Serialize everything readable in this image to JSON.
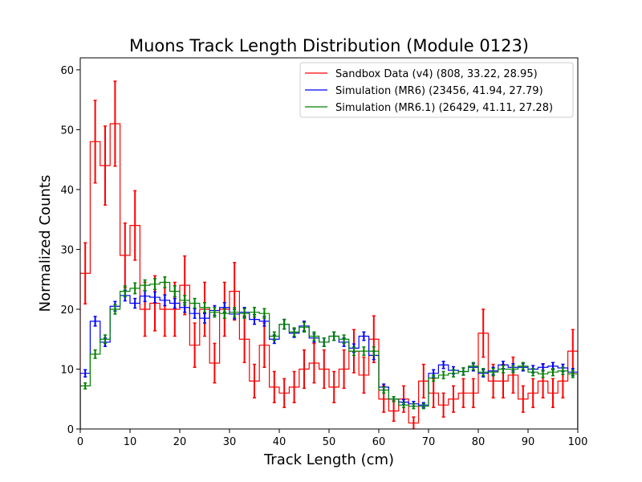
{
  "chart_data": {
    "type": "line",
    "drawstyle": "step-histogram-with-errorbars",
    "title": "Muons Track Length Distribution (Module 0123)",
    "xlabel": "Track Length (cm)",
    "ylabel": "Normalized Counts",
    "xlim": [
      0,
      100
    ],
    "ylim": [
      0,
      62
    ],
    "xticks": [
      0,
      10,
      20,
      30,
      40,
      50,
      60,
      70,
      80,
      90,
      100
    ],
    "yticks": [
      0,
      10,
      20,
      30,
      40,
      50,
      60
    ],
    "grid": false,
    "legend_position": "top-right",
    "bin_edges": [
      0,
      2,
      4,
      6,
      8,
      10,
      12,
      14,
      16,
      18,
      20,
      22,
      24,
      26,
      28,
      30,
      32,
      34,
      36,
      38,
      40,
      42,
      44,
      46,
      48,
      50,
      52,
      54,
      56,
      58,
      60,
      62,
      64,
      66,
      68,
      70,
      72,
      74,
      76,
      78,
      80,
      82,
      84,
      86,
      88,
      90,
      92,
      94,
      96,
      98,
      100
    ],
    "series": [
      {
        "name": "Sandbox Data (v4) (808, 33.22, 28.95)",
        "color": "#ff0000",
        "values": [
          26,
          48,
          44,
          51,
          29,
          34,
          20,
          21,
          20,
          20,
          24,
          14,
          20,
          11,
          20,
          23,
          15,
          8,
          14,
          7,
          6,
          7,
          10,
          11,
          10,
          7,
          10,
          13,
          9,
          15,
          5,
          3,
          5,
          1,
          8,
          6,
          4,
          5,
          6,
          6,
          16,
          8,
          8,
          9,
          5,
          6,
          8,
          6,
          8,
          13
        ],
        "errors": [
          5.1,
          6.9,
          6.6,
          7.1,
          5.4,
          5.8,
          4.5,
          4.6,
          4.5,
          4.5,
          4.9,
          3.7,
          4.5,
          3.3,
          4.5,
          4.8,
          3.9,
          2.8,
          3.7,
          2.6,
          2.4,
          2.6,
          3.2,
          3.3,
          3.2,
          2.6,
          3.2,
          3.6,
          3.0,
          3.9,
          2.2,
          1.7,
          2.2,
          1.0,
          2.8,
          2.4,
          2.0,
          2.2,
          2.4,
          2.4,
          4.0,
          2.8,
          2.8,
          3.0,
          2.2,
          2.4,
          2.8,
          2.4,
          2.8,
          3.6
        ]
      },
      {
        "name": "Simulation (MR6) (23456, 41.94, 27.79)",
        "color": "#0000ff",
        "values": [
          9.3,
          18,
          14.5,
          20.5,
          22.3,
          21,
          22.2,
          22,
          21.5,
          21,
          20.3,
          19.3,
          18.5,
          19.8,
          20.3,
          19.2,
          19.5,
          18.3,
          18,
          15,
          17.5,
          16,
          17.2,
          15.2,
          14.5,
          15.5,
          14.5,
          13.5,
          15.5,
          12.3,
          7,
          5,
          4.5,
          4.2,
          4,
          9.3,
          10.7,
          9.8,
          9.6,
          10.3,
          9.3,
          9.7,
          10.7,
          10.3,
          10.3,
          10,
          10.3,
          10.5,
          10.2,
          9.5
        ],
        "errors": [
          0.6,
          0.8,
          0.7,
          0.8,
          0.9,
          0.8,
          0.9,
          0.9,
          0.9,
          0.8,
          0.8,
          0.8,
          0.8,
          0.8,
          0.8,
          0.8,
          0.8,
          0.8,
          0.8,
          0.7,
          0.8,
          0.7,
          0.8,
          0.7,
          0.7,
          0.7,
          0.7,
          0.7,
          0.7,
          0.7,
          0.5,
          0.4,
          0.4,
          0.4,
          0.4,
          0.6,
          0.6,
          0.6,
          0.6,
          0.6,
          0.6,
          0.6,
          0.6,
          0.6,
          0.6,
          0.6,
          0.6,
          0.6,
          0.6,
          0.6
        ]
      },
      {
        "name": "Simulation (MR6.1) (26429, 41.11, 27.28)",
        "color": "#008000",
        "values": [
          7.2,
          12.5,
          15,
          20,
          23,
          23.5,
          24,
          24.2,
          24.5,
          23,
          21.5,
          21,
          20.3,
          19.5,
          19.3,
          19.5,
          19.3,
          19.5,
          19.3,
          15.5,
          17.5,
          16.2,
          17,
          15.5,
          14.5,
          15.5,
          15,
          13,
          13,
          13,
          6.5,
          5,
          4,
          3.8,
          3.8,
          8.5,
          9,
          9.3,
          9.6,
          10.5,
          9.5,
          9.5,
          10,
          10,
          10.5,
          9.5,
          9.2,
          9.5,
          9.7,
          9.2
        ],
        "errors": [
          0.5,
          0.7,
          0.7,
          0.8,
          0.9,
          0.9,
          0.9,
          0.9,
          0.9,
          0.9,
          0.8,
          0.8,
          0.8,
          0.8,
          0.8,
          0.8,
          0.8,
          0.8,
          0.8,
          0.7,
          0.8,
          0.7,
          0.8,
          0.7,
          0.7,
          0.7,
          0.7,
          0.7,
          0.7,
          0.7,
          0.5,
          0.4,
          0.4,
          0.4,
          0.4,
          0.5,
          0.6,
          0.6,
          0.6,
          0.6,
          0.6,
          0.6,
          0.6,
          0.6,
          0.6,
          0.6,
          0.6,
          0.6,
          0.6,
          0.6
        ]
      }
    ]
  }
}
